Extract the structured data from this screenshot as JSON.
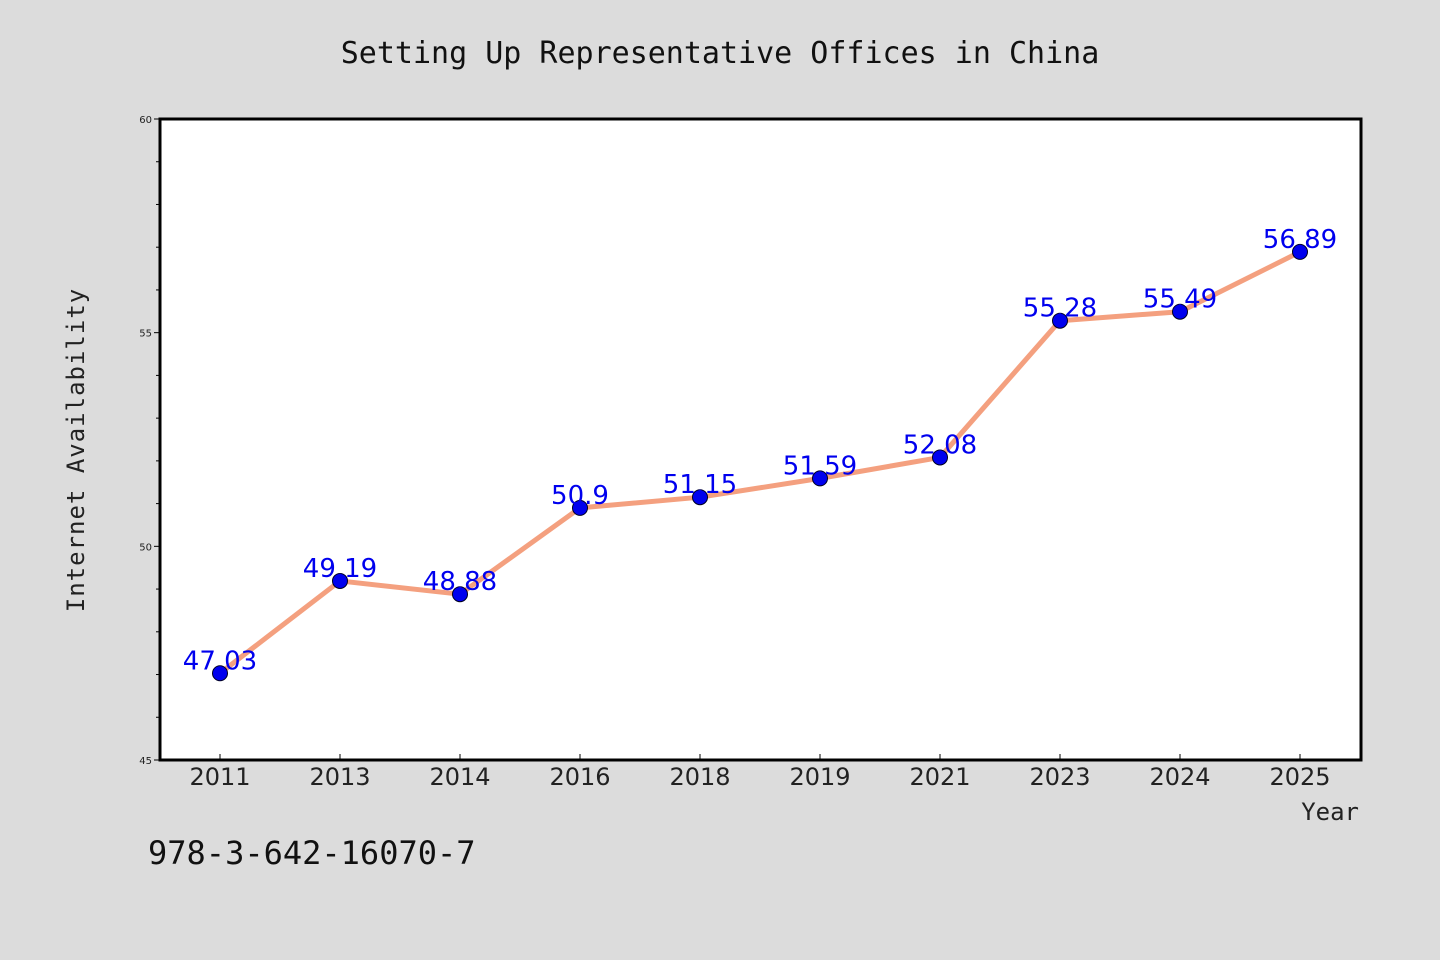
{
  "chart_data": {
    "type": "line",
    "title": "Setting Up Representative Offices in China",
    "xlabel": "Year",
    "ylabel": "Internet Availability",
    "categories": [
      "2011",
      "2013",
      "2014",
      "2016",
      "2018",
      "2019",
      "2021",
      "2023",
      "2024",
      "2025"
    ],
    "series": [
      {
        "values": [
          47.03,
          49.19,
          48.88,
          50.9,
          51.15,
          51.59,
          52.08,
          55.28,
          55.49,
          56.89
        ],
        "data_labels": [
          "47.03",
          "49.19",
          "48.88",
          "50.9",
          "51.15",
          "51.59",
          "52.08",
          "55.28",
          "55.49",
          "56.89"
        ]
      }
    ],
    "ylim": [
      45,
      60
    ],
    "yticks": [
      "45",
      "50",
      "55",
      "60"
    ],
    "grid": false,
    "legend": "none",
    "colors": {
      "line": "#f4a07f",
      "marker": "#0000ee",
      "data_label": "#0000ee",
      "plot_background": "#ffffff",
      "figure_background": "#dcdcdc"
    }
  },
  "annotation": "978-3-642-16070-7"
}
